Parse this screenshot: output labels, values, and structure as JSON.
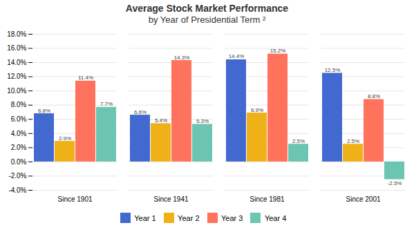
{
  "chart_data": {
    "type": "bar",
    "title": "Average Stock Market Performance",
    "subtitle": "by Year of Presidential Term ²",
    "categories": [
      "Since 1901",
      "Since 1941",
      "Since 1981",
      "Since 2001"
    ],
    "series": [
      {
        "name": "Year 1",
        "values": [
          6.8,
          6.6,
          14.4,
          12.5
        ],
        "value_labels": [
          "6.8%",
          "6.6%",
          "14.4%",
          "12.5%"
        ]
      },
      {
        "name": "Year 2",
        "values": [
          2.9,
          5.4,
          6.9,
          2.5
        ],
        "value_labels": [
          "2.9%",
          "5.4%",
          "6.9%",
          "2.5%"
        ]
      },
      {
        "name": "Year 3",
        "values": [
          11.4,
          14.3,
          15.2,
          8.8
        ],
        "value_labels": [
          "11.4%",
          "14.3%",
          "15.2%",
          "8.8%"
        ]
      },
      {
        "name": "Year 4",
        "values": [
          7.7,
          5.3,
          2.5,
          -2.5
        ],
        "value_labels": [
          "7.7%",
          "5.3%",
          "2.5%",
          "-2.5%"
        ]
      }
    ],
    "ylim": [
      -4.0,
      18.0
    ],
    "yticks": [
      {
        "value": -4.0,
        "label": "-4.0%"
      },
      {
        "value": -2.0,
        "label": "-2.0%"
      },
      {
        "value": 0.0,
        "label": "0.0%"
      },
      {
        "value": 2.0,
        "label": "2.0%"
      },
      {
        "value": 4.0,
        "label": "4.0%"
      },
      {
        "value": 6.0,
        "label": "6.0%"
      },
      {
        "value": 8.0,
        "label": "8.0%"
      },
      {
        "value": 10.0,
        "label": "10.0%"
      },
      {
        "value": 12.0,
        "label": "12.0%"
      },
      {
        "value": 14.0,
        "label": "14.0%"
      },
      {
        "value": 16.0,
        "label": "16.0%"
      },
      {
        "value": 18.0,
        "label": "18.0%"
      }
    ],
    "grid": true,
    "data_labels": true,
    "legend": "bottom"
  }
}
